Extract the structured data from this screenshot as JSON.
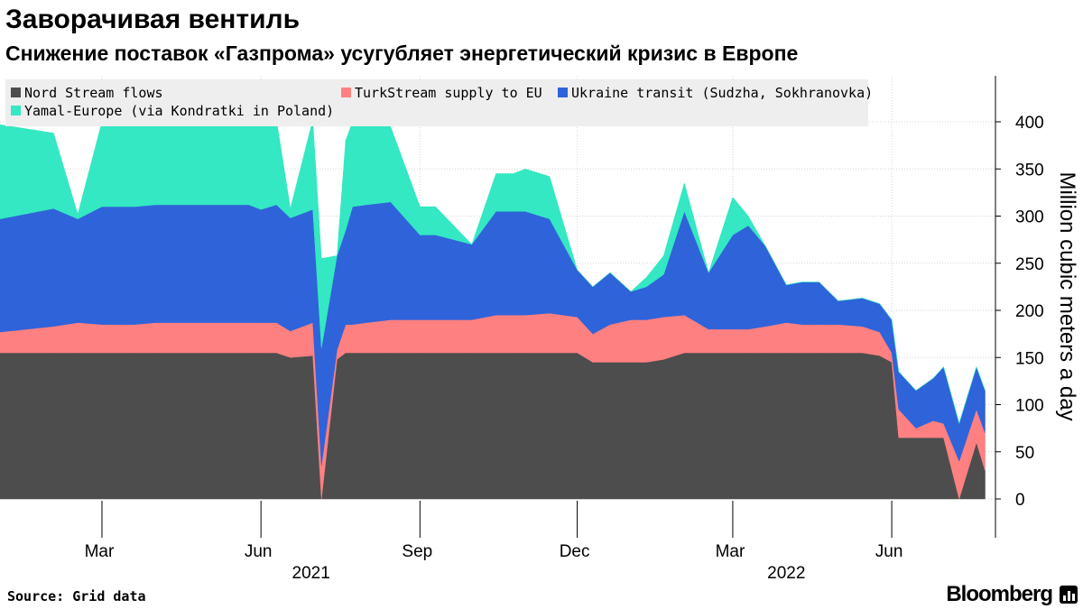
{
  "header": {
    "title": "Заворачивая вентиль",
    "subtitle": "Снижение поставок «Газпрома» усугубляет энергетический кризис в Европе"
  },
  "footer": {
    "source": "Source: Grid data",
    "brand": "Bloomberg"
  },
  "chart_data": {
    "type": "area",
    "stacked": true,
    "title": "Заворачивая вентиль",
    "subtitle": "Снижение поставок «Газпрома» усугубляет энергетический кризис в Европе",
    "ylabel": "Million cubic meters a day",
    "ylim": [
      0,
      450
    ],
    "yticks": [
      0,
      50,
      100,
      150,
      200,
      250,
      300,
      350,
      400
    ],
    "y_axis_position": "right",
    "xlim": [
      "2021-01-01",
      "2022-07-31"
    ],
    "x_tick_labels": [
      "Mar",
      "Jun",
      "Sep",
      "Dec",
      "Mar",
      "Jun"
    ],
    "x_ticks": [
      "2021-03-01",
      "2021-06-01",
      "2021-09-01",
      "2021-12-01",
      "2022-03-01",
      "2022-06-01"
    ],
    "year_labels": [
      {
        "label": "2021",
        "date": "2021-06-30"
      },
      {
        "label": "2022",
        "date": "2022-04-01"
      }
    ],
    "grid": true,
    "legend_position": "top-left",
    "x": [
      "2021-01-01",
      "2021-02-01",
      "2021-02-15",
      "2021-03-01",
      "2021-03-20",
      "2021-04-01",
      "2021-05-01",
      "2021-05-25",
      "2021-06-01",
      "2021-06-10",
      "2021-06-18",
      "2021-07-01",
      "2021-07-06",
      "2021-07-15",
      "2021-07-20",
      "2021-07-24",
      "2021-08-01",
      "2021-08-15",
      "2021-09-01",
      "2021-09-10",
      "2021-10-01",
      "2021-10-15",
      "2021-10-25",
      "2021-11-01",
      "2021-11-15",
      "2021-12-01",
      "2021-12-10",
      "2021-12-20",
      "2022-01-01",
      "2022-01-10",
      "2022-01-20",
      "2022-02-01",
      "2022-02-15",
      "2022-03-01",
      "2022-03-10",
      "2022-03-20",
      "2022-04-01",
      "2022-04-10",
      "2022-04-20",
      "2022-05-01",
      "2022-05-15",
      "2022-05-25",
      "2022-06-01",
      "2022-06-05",
      "2022-06-15",
      "2022-06-25",
      "2022-07-01",
      "2022-07-10",
      "2022-07-20",
      "2022-07-25"
    ],
    "series": [
      {
        "name": "Nord Stream flows",
        "color": "#4d4d4d",
        "values": [
          155,
          155,
          155,
          155,
          155,
          155,
          155,
          155,
          155,
          155,
          150,
          152,
          0,
          148,
          155,
          155,
          155,
          155,
          155,
          155,
          155,
          155,
          155,
          155,
          155,
          155,
          145,
          145,
          145,
          145,
          148,
          155,
          155,
          155,
          155,
          155,
          155,
          155,
          155,
          155,
          155,
          152,
          145,
          65,
          65,
          65,
          65,
          0,
          60,
          30
        ]
      },
      {
        "name": "TurkStream supply to EU",
        "color": "#ff8080",
        "values": [
          22,
          28,
          32,
          30,
          30,
          32,
          32,
          32,
          32,
          32,
          28,
          35,
          35,
          10,
          30,
          30,
          32,
          35,
          35,
          35,
          35,
          40,
          40,
          40,
          42,
          38,
          30,
          40,
          45,
          45,
          45,
          40,
          25,
          25,
          25,
          28,
          32,
          30,
          30,
          30,
          28,
          25,
          10,
          30,
          10,
          18,
          15,
          40,
          35,
          40
        ]
      },
      {
        "name": "Ukraine transit (Sudzha, Sokhranovka)",
        "color": "#2f63d9",
        "values": [
          120,
          125,
          110,
          125,
          125,
          125,
          125,
          125,
          120,
          125,
          120,
          120,
          125,
          100,
          100,
          125,
          125,
          125,
          90,
          90,
          80,
          110,
          110,
          110,
          100,
          50,
          50,
          55,
          30,
          35,
          45,
          110,
          60,
          100,
          110,
          85,
          40,
          45,
          45,
          25,
          30,
          30,
          35,
          40,
          40,
          45,
          60,
          40,
          45,
          45
        ]
      },
      {
        "name": "Yamal-Europe (via Kondratki in Poland)",
        "color": "#33e8c2",
        "values": [
          100,
          80,
          5,
          90,
          90,
          95,
          90,
          90,
          95,
          90,
          10,
          95,
          95,
          0,
          95,
          90,
          90,
          80,
          30,
          30,
          0,
          40,
          40,
          45,
          45,
          0,
          0,
          0,
          0,
          10,
          20,
          30,
          0,
          40,
          10,
          0,
          0,
          0,
          0,
          0,
          0,
          0,
          0,
          0,
          0,
          0,
          0,
          0,
          0,
          0
        ]
      }
    ]
  }
}
